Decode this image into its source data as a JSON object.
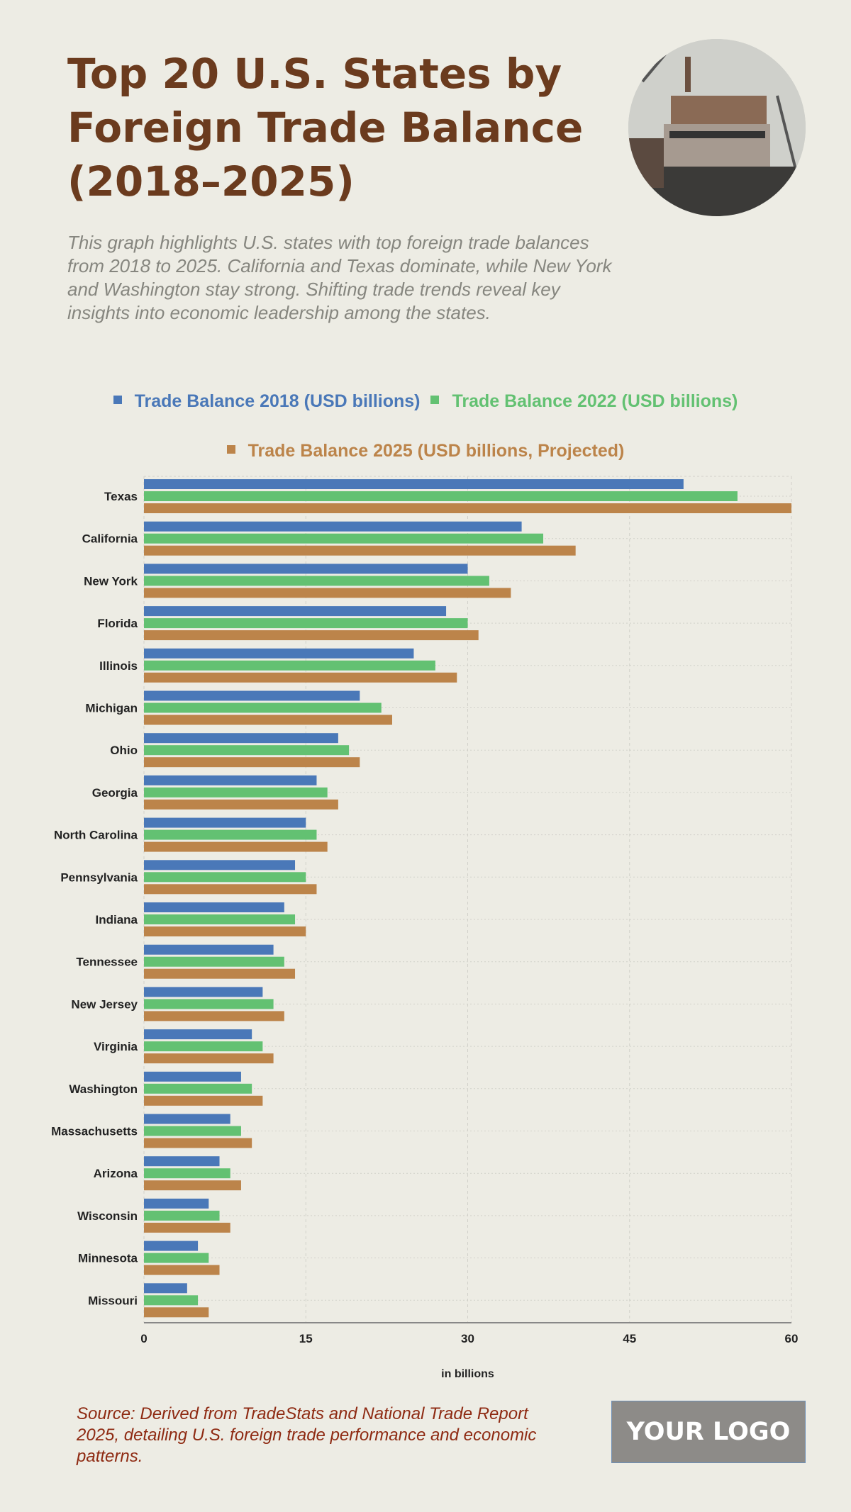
{
  "header": {
    "title": "Top 20 U.S. States by Foreign Trade Balance (2018–2025)",
    "subtitle": "This graph highlights U.S. states with top foreign trade balances from 2018 to 2025. California and Texas dominate, while New York and Washington stay strong. Shifting trade trends reveal key insights into economic leadership among the states."
  },
  "footer": {
    "source": "Source: Derived from TradeStats and National Trade Report 2025, detailing U.S. foreign trade performance and economic patterns.",
    "logo": "YOUR LOGO"
  },
  "chart_data": {
    "type": "bar",
    "orientation": "horizontal",
    "categories": [
      "Texas",
      "California",
      "New York",
      "Florida",
      "Illinois",
      "Michigan",
      "Ohio",
      "Georgia",
      "North Carolina",
      "Pennsylvania",
      "Indiana",
      "Tennessee",
      "New Jersey",
      "Virginia",
      "Washington",
      "Massachusetts",
      "Arizona",
      "Wisconsin",
      "Minnesota",
      "Missouri"
    ],
    "series": [
      {
        "name": "Trade Balance 2018 (USD billions)",
        "color": "#4a78b8",
        "values": [
          50,
          35,
          30,
          28,
          25,
          20,
          18,
          16,
          15,
          14,
          13,
          12,
          11,
          10,
          9,
          8,
          7,
          6,
          5,
          4
        ]
      },
      {
        "name": "Trade Balance 2022 (USD billions)",
        "color": "#63c172",
        "values": [
          55,
          37,
          32,
          30,
          27,
          22,
          19,
          17,
          16,
          15,
          14,
          13,
          12,
          11,
          10,
          9,
          8,
          7,
          6,
          5
        ]
      },
      {
        "name": "Trade Balance 2025 (USD billions, Projected)",
        "color": "#bc844a",
        "values": [
          60,
          40,
          34,
          31,
          29,
          23,
          20,
          18,
          17,
          16,
          15,
          14,
          13,
          12,
          11,
          10,
          9,
          8,
          7,
          6
        ]
      }
    ],
    "xlabel": "in billions",
    "xlim": [
      0,
      60
    ],
    "xticks": [
      "0",
      "15",
      "30",
      "45",
      "60"
    ],
    "grid": true,
    "legend_position": "top"
  }
}
